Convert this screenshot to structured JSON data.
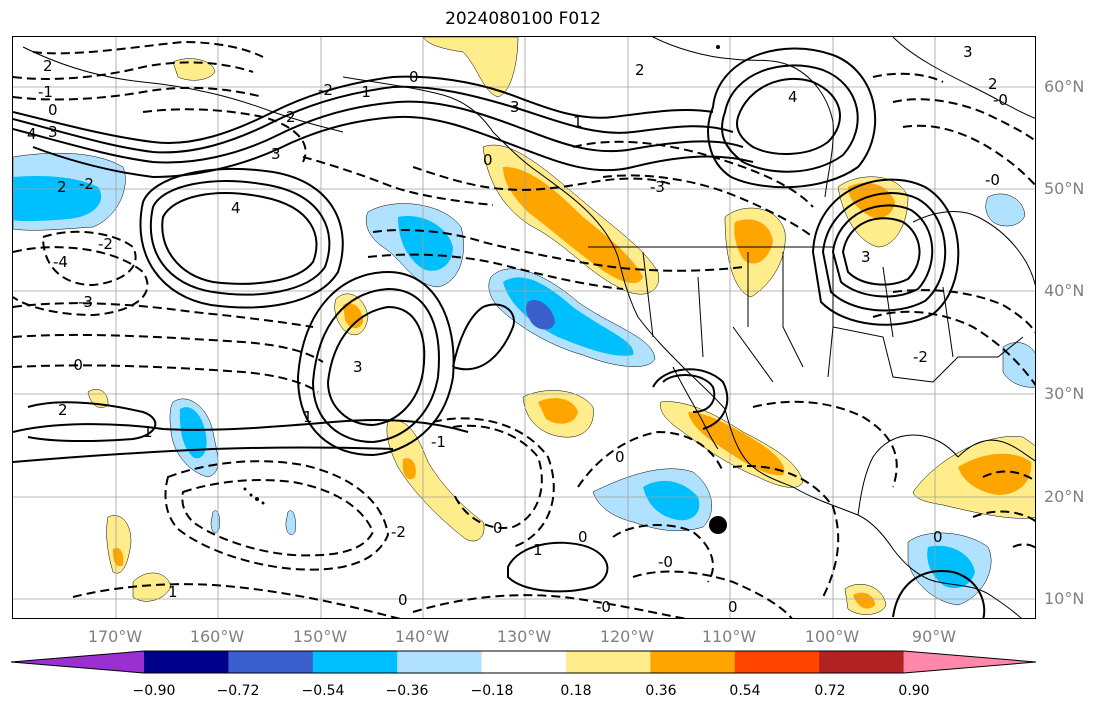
{
  "title": "2024080100 F012",
  "lat_labels": [
    "60°N",
    "50°N",
    "40°N",
    "30°N",
    "20°N",
    "10°N"
  ],
  "lon_labels": [
    "170°W",
    "160°W",
    "150°W",
    "140°W",
    "130°W",
    "120°W",
    "110°W",
    "100°W",
    "90°W"
  ],
  "colorbar": {
    "ticks": [
      "−0.90",
      "−0.72",
      "−0.54",
      "−0.36",
      "−0.18",
      "0.18",
      "0.36",
      "0.54",
      "0.72",
      "0.90"
    ],
    "colors": [
      "#9b30d0",
      "#00008b",
      "#3a5fcd",
      "#00bfff",
      "#b0e2ff",
      "#ffffff",
      "#ffec8b",
      "#ffa500",
      "#ff4500",
      "#b22222",
      "#ff88aa"
    ]
  },
  "contour_labels": {
    "c1": "2",
    "c2": "-1",
    "c3": "0",
    "c4": "4",
    "c5": "3",
    "c6": "2",
    "c7": "-2",
    "c8": "4",
    "c9": "3",
    "c10": "2",
    "c11": "-3",
    "c12": "-4",
    "c13": "-2",
    "c14": "-0",
    "c15": "2",
    "c16": "1",
    "c17": "3",
    "c18": "1",
    "c19": "-2",
    "c20": "0",
    "c21": "0",
    "c22": "-1",
    "c23": "-2",
    "c24": "3",
    "c25": "4",
    "c26": "2",
    "c27": "0",
    "c28": "-3",
    "c29": "1",
    "c30": "0",
    "c31": "3",
    "c32": "-2",
    "c33": "1",
    "c34": "0",
    "c35": "-0",
    "c36": "0",
    "c37": "-0",
    "c38": "1",
    "c39": "0",
    "c40": "0",
    "c41": "-1",
    "c42": "-0",
    "c43": "-0",
    "c44": "3",
    "c45": "2"
  },
  "marker": "station-dot"
}
